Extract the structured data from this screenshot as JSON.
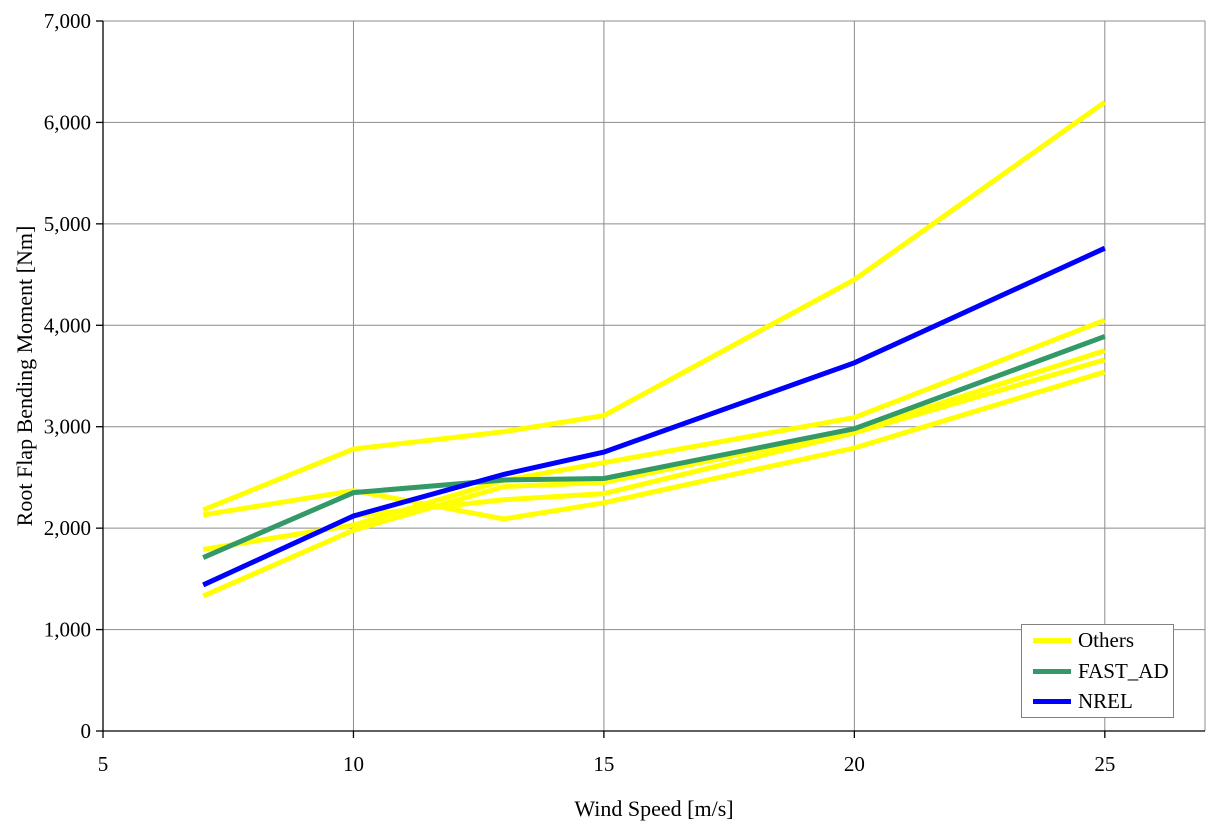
{
  "chart_data": {
    "type": "line",
    "title": "",
    "xlabel": "Wind Speed [m/s]",
    "ylabel": "Root Flap Bending Moment [Nm]",
    "xlim": [
      5,
      27
    ],
    "ylim": [
      0,
      7000
    ],
    "grid": true,
    "grid_color": "#8c8c8c",
    "axis_color": "#000000",
    "x_ticks": [
      {
        "v": 5,
        "label": "5"
      },
      {
        "v": 10,
        "label": "10"
      },
      {
        "v": 15,
        "label": "15"
      },
      {
        "v": 20,
        "label": "20"
      },
      {
        "v": 25,
        "label": "25"
      }
    ],
    "y_ticks": [
      {
        "v": 0,
        "label": "0"
      },
      {
        "v": 1000,
        "label": "1,000"
      },
      {
        "v": 2000,
        "label": "2,000"
      },
      {
        "v": 3000,
        "label": "3,000"
      },
      {
        "v": 4000,
        "label": "4,000"
      },
      {
        "v": 5000,
        "label": "5,000"
      },
      {
        "v": 6000,
        "label": "6,000"
      },
      {
        "v": 7000,
        "label": "7,000"
      }
    ],
    "series": [
      {
        "name": "Others",
        "color": "#FFFF00",
        "x": [
          7,
          10,
          13,
          15,
          20,
          25
        ],
        "y": [
          2180,
          2780,
          2950,
          3110,
          4450,
          6200
        ]
      },
      {
        "name": "Others",
        "color": "#FFFF00",
        "x": [
          7,
          10,
          13,
          15,
          20,
          25
        ],
        "y": [
          2130,
          2370,
          2090,
          2250,
          2790,
          3540
        ]
      },
      {
        "name": "Others",
        "color": "#FFFF00",
        "x": [
          7,
          10,
          13,
          15,
          20,
          25
        ],
        "y": [
          1790,
          2030,
          2470,
          2645,
          3090,
          4050
        ]
      },
      {
        "name": "Others",
        "color": "#FFFF00",
        "x": [
          7,
          10,
          13,
          15,
          20,
          25
        ],
        "y": [
          1330,
          1980,
          2410,
          2450,
          2960,
          3750
        ]
      },
      {
        "name": "Others",
        "color": "#FFFF00",
        "x": [
          10,
          13,
          15,
          20,
          25
        ],
        "y": [
          2120,
          2280,
          2340,
          2940,
          3660
        ]
      },
      {
        "name": "FAST_AD",
        "color": "#339966",
        "x": [
          7,
          10,
          13,
          15,
          20,
          25
        ],
        "y": [
          1710,
          2350,
          2475,
          2490,
          2980,
          3890
        ]
      },
      {
        "name": "NREL",
        "color": "#0000FF",
        "x": [
          7,
          10,
          13,
          15,
          20,
          25
        ],
        "y": [
          1440,
          2120,
          2530,
          2750,
          3630,
          4760
        ]
      }
    ],
    "legend_position": "bottom-right",
    "legend": [
      {
        "label": "Others",
        "color": "#FFFF00"
      },
      {
        "label": "FAST_AD",
        "color": "#339966"
      },
      {
        "label": "NREL",
        "color": "#0000FF"
      }
    ]
  }
}
